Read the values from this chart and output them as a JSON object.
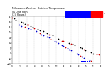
{
  "title": "Milwaukee Weather Outdoor Temperature\nvs Dew Point\n(24 Hours)",
  "bg_color": "#ffffff",
  "plot_bg": "#ffffff",
  "grid_color": "#bbbbbb",
  "legend_temp_color": "#0000ff",
  "legend_dew_color": "#ff0000",
  "temp_points_black": [
    [
      0.5,
      33
    ],
    [
      1.0,
      32
    ],
    [
      1.5,
      31
    ],
    [
      2.5,
      30
    ],
    [
      3.0,
      29
    ],
    [
      3.5,
      28
    ],
    [
      5.0,
      26
    ],
    [
      5.5,
      25
    ],
    [
      7.0,
      23
    ],
    [
      7.5,
      22
    ],
    [
      8.5,
      21
    ],
    [
      9.0,
      20
    ],
    [
      9.5,
      19
    ],
    [
      11.0,
      17
    ],
    [
      11.5,
      16
    ],
    [
      12.5,
      14
    ],
    [
      13.0,
      13
    ],
    [
      15.0,
      11
    ],
    [
      15.5,
      10
    ],
    [
      16.5,
      9
    ],
    [
      17.0,
      8
    ],
    [
      18.5,
      6
    ],
    [
      19.0,
      5
    ],
    [
      20.0,
      3
    ],
    [
      20.5,
      2
    ],
    [
      21.5,
      1
    ],
    [
      22.0,
      0
    ]
  ],
  "temp_points_red": [
    [
      0.0,
      34
    ],
    [
      4.0,
      27
    ],
    [
      4.5,
      27
    ],
    [
      6.0,
      24
    ],
    [
      10.0,
      18
    ],
    [
      10.5,
      18
    ],
    [
      13.5,
      12
    ],
    [
      14.0,
      12
    ],
    [
      16.0,
      9
    ],
    [
      19.5,
      4
    ],
    [
      23.0,
      -1
    ],
    [
      23.5,
      -1
    ]
  ],
  "dew_points_blue": [
    [
      2.0,
      27
    ],
    [
      2.5,
      26
    ],
    [
      4.5,
      24
    ],
    [
      5.0,
      23
    ],
    [
      6.5,
      21
    ],
    [
      7.0,
      20
    ],
    [
      8.0,
      18
    ],
    [
      8.5,
      17
    ],
    [
      9.5,
      16
    ],
    [
      10.0,
      15
    ],
    [
      11.0,
      13
    ],
    [
      11.5,
      12
    ],
    [
      12.0,
      11
    ],
    [
      12.5,
      10
    ],
    [
      13.5,
      8
    ],
    [
      14.0,
      7
    ],
    [
      15.0,
      5
    ],
    [
      15.5,
      4
    ],
    [
      16.0,
      3
    ],
    [
      16.5,
      2
    ],
    [
      17.5,
      0
    ],
    [
      18.0,
      -1
    ],
    [
      19.0,
      -3
    ],
    [
      19.5,
      -4
    ],
    [
      20.5,
      -5
    ],
    [
      21.0,
      -6
    ]
  ],
  "dew_points_red": [
    [
      3.5,
      25
    ],
    [
      7.5,
      19
    ],
    [
      10.5,
      14
    ],
    [
      14.5,
      6
    ],
    [
      18.5,
      -2
    ],
    [
      21.5,
      -7
    ]
  ],
  "blue_bar_top": [
    [
      19.0,
      -8
    ],
    [
      19.5,
      -8
    ],
    [
      20.0,
      -8
    ],
    [
      20.5,
      -8
    ],
    [
      21.0,
      -8
    ]
  ],
  "xlim": [
    0,
    24
  ],
  "ylim": [
    -10,
    35
  ],
  "xtick_step": 2,
  "ytick_step": 5,
  "dot_size": 1.5,
  "temp_color": "#000000",
  "dew_color": "#0000cc",
  "red_color": "#cc0000",
  "blue_bar_color": "#0000ff"
}
